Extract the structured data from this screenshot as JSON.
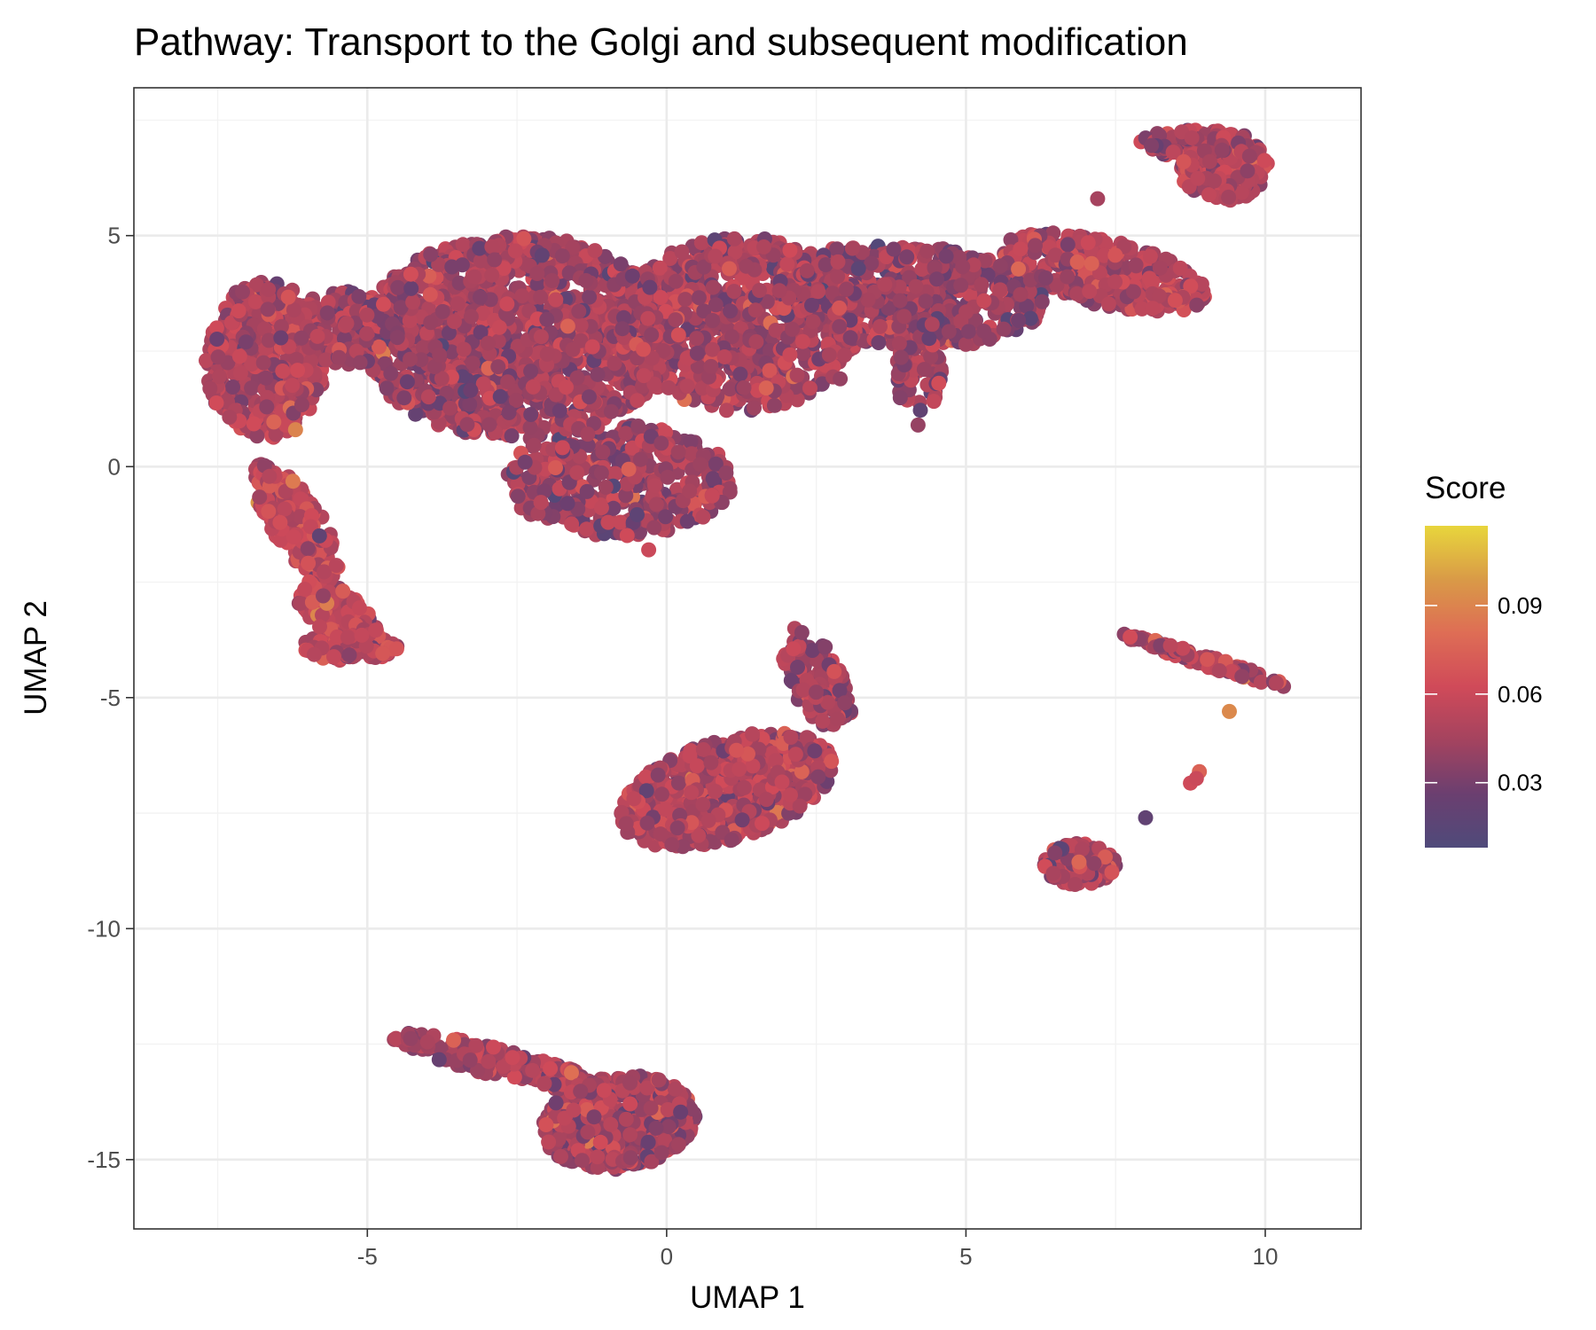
{
  "chart_data": {
    "type": "scatter",
    "title": "Pathway: Transport to the Golgi and subsequent modification",
    "xlabel": "UMAP 1",
    "ylabel": "UMAP 2",
    "xlim": [
      -8.9,
      11.6
    ],
    "ylim": [
      -16.5,
      8.2
    ],
    "x_ticks": [
      -5,
      0,
      5,
      10
    ],
    "x_tick_labels": [
      "-5",
      "0",
      "5",
      "10"
    ],
    "y_ticks": [
      -15,
      -10,
      -5,
      0,
      5
    ],
    "y_tick_labels": [
      "-15",
      "-10",
      "-5",
      "0",
      "5"
    ],
    "grid": true,
    "color_scale": {
      "title": "Score",
      "min": 0.008,
      "max": 0.117,
      "ticks": [
        0.03,
        0.06,
        0.09
      ],
      "tick_labels": [
        "0.03",
        "0.06",
        "0.09"
      ],
      "colors": [
        "#4f4a7a",
        "#6b3f70",
        "#a4435f",
        "#d04a59",
        "#de6d55",
        "#d99a47",
        "#e8d63c"
      ]
    },
    "legend_position": "right",
    "clusters": [
      {
        "cx": -6.7,
        "cy": 2.3,
        "rx": 1.0,
        "ry": 1.7,
        "rot": 0,
        "n": 500,
        "score": 0.05
      },
      {
        "cx": -6.2,
        "cy": -1.2,
        "rx": 0.45,
        "ry": 1.4,
        "rot": 25,
        "n": 220,
        "score": 0.055
      },
      {
        "cx": -5.5,
        "cy": -3.2,
        "rx": 0.45,
        "ry": 0.9,
        "rot": 40,
        "n": 160,
        "score": 0.058
      },
      {
        "cx": -5.3,
        "cy": -3.9,
        "rx": 0.8,
        "ry": 0.3,
        "rot": 0,
        "n": 120,
        "score": 0.052
      },
      {
        "cx": -5.4,
        "cy": 3.0,
        "rx": 0.9,
        "ry": 0.8,
        "rot": 0,
        "n": 180,
        "score": 0.045
      },
      {
        "cx": -2.5,
        "cy": 2.8,
        "rx": 2.6,
        "ry": 2.2,
        "rot": 0,
        "n": 1300,
        "score": 0.045
      },
      {
        "cx": -0.8,
        "cy": -0.3,
        "rx": 1.9,
        "ry": 1.2,
        "rot": 0,
        "n": 380,
        "score": 0.044
      },
      {
        "cx": 1.2,
        "cy": 3.1,
        "rx": 2.0,
        "ry": 1.9,
        "rot": 0,
        "n": 750,
        "score": 0.046
      },
      {
        "cx": 4.0,
        "cy": 3.7,
        "rx": 2.3,
        "ry": 1.1,
        "rot": -5,
        "n": 520,
        "score": 0.043
      },
      {
        "cx": 4.2,
        "cy": 2.0,
        "rx": 0.4,
        "ry": 0.8,
        "rot": 0,
        "n": 60,
        "score": 0.045
      },
      {
        "cx": 7.3,
        "cy": 4.2,
        "rx": 1.8,
        "ry": 0.7,
        "rot": -18,
        "n": 330,
        "score": 0.05
      },
      {
        "cx": 9.3,
        "cy": 6.5,
        "rx": 0.75,
        "ry": 0.75,
        "rot": 0,
        "n": 240,
        "score": 0.052
      },
      {
        "cx": 8.8,
        "cy": 7.0,
        "rx": 0.9,
        "ry": 0.3,
        "rot": 0,
        "n": 110,
        "score": 0.045
      },
      {
        "cx": 1.0,
        "cy": -7.0,
        "rx": 1.9,
        "ry": 1.05,
        "rot": 25,
        "n": 700,
        "score": 0.048
      },
      {
        "cx": 2.5,
        "cy": -4.6,
        "rx": 0.45,
        "ry": 1.2,
        "rot": 20,
        "n": 130,
        "score": 0.045
      },
      {
        "cx": 6.9,
        "cy": -8.6,
        "rx": 0.6,
        "ry": 0.45,
        "rot": 0,
        "n": 160,
        "score": 0.046
      },
      {
        "cx": 9.0,
        "cy": -4.2,
        "rx": 1.5,
        "ry": 0.12,
        "rot": -22,
        "n": 100,
        "score": 0.05
      },
      {
        "cx": -0.8,
        "cy": -14.2,
        "rx": 1.3,
        "ry": 1.0,
        "rot": 15,
        "n": 480,
        "score": 0.043
      },
      {
        "cx": -2.8,
        "cy": -12.9,
        "rx": 1.9,
        "ry": 0.3,
        "rot": -18,
        "n": 200,
        "score": 0.047
      }
    ],
    "outliers": [
      {
        "x": -5.8,
        "y": -1.5,
        "score": 0.02
      },
      {
        "x": -0.3,
        "y": -1.8,
        "score": 0.06
      },
      {
        "x": 8.0,
        "y": -7.6,
        "score": 0.02
      },
      {
        "x": 8.9,
        "y": -6.6,
        "score": 0.075
      },
      {
        "x": 8.75,
        "y": -6.85,
        "score": 0.062
      },
      {
        "x": 8.85,
        "y": -6.75,
        "score": 0.06
      },
      {
        "x": 9.4,
        "y": -5.3,
        "score": 0.092
      },
      {
        "x": 4.2,
        "y": 0.9,
        "score": 0.04
      },
      {
        "x": 2.9,
        "y": 1.9,
        "score": 0.04
      },
      {
        "x": 7.2,
        "y": 5.8,
        "score": 0.045
      },
      {
        "x": -6.2,
        "y": 0.8,
        "score": 0.09
      }
    ]
  }
}
